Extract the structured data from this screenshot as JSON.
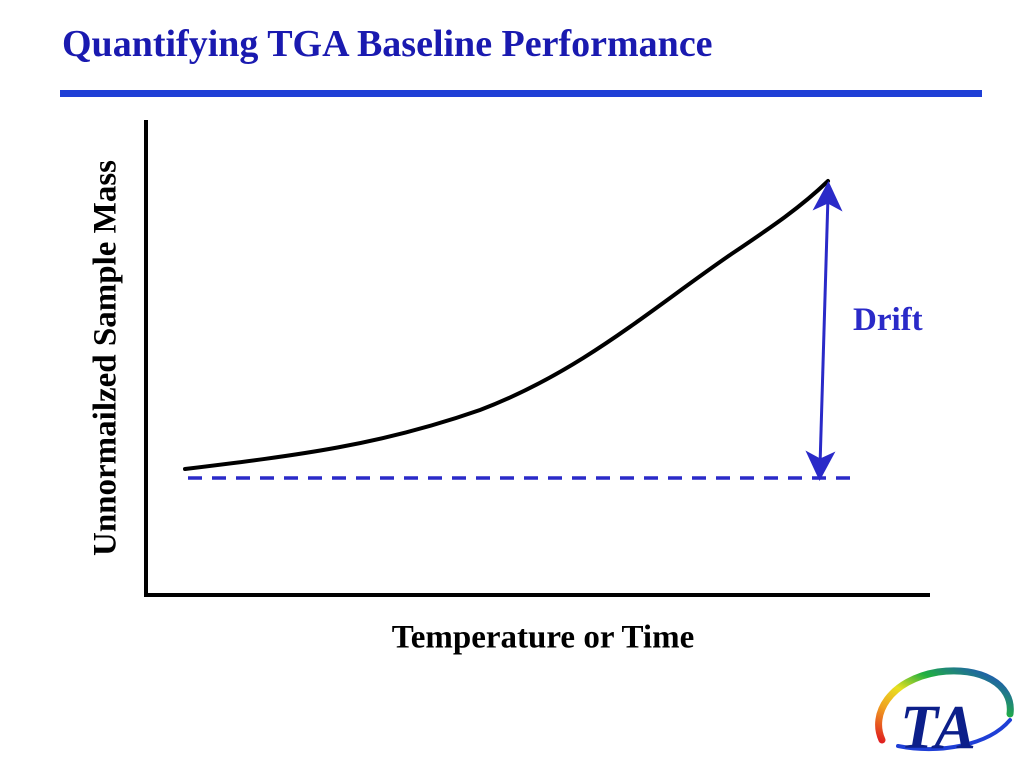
{
  "slide": {
    "title": "Quantifying TGA Baseline Performance"
  },
  "diagram": {
    "y_axis_label": "Unnormailzed Sample Mass",
    "x_axis_label": "Temperature or Time",
    "drift_label": "Drift",
    "colors": {
      "title": "#1a1ab0",
      "rule": "#1f3fd6",
      "baseline": "#2a2ac8",
      "arrow": "#2a2ac8",
      "curve": "#000000"
    }
  },
  "logo": {
    "text": "TA"
  }
}
